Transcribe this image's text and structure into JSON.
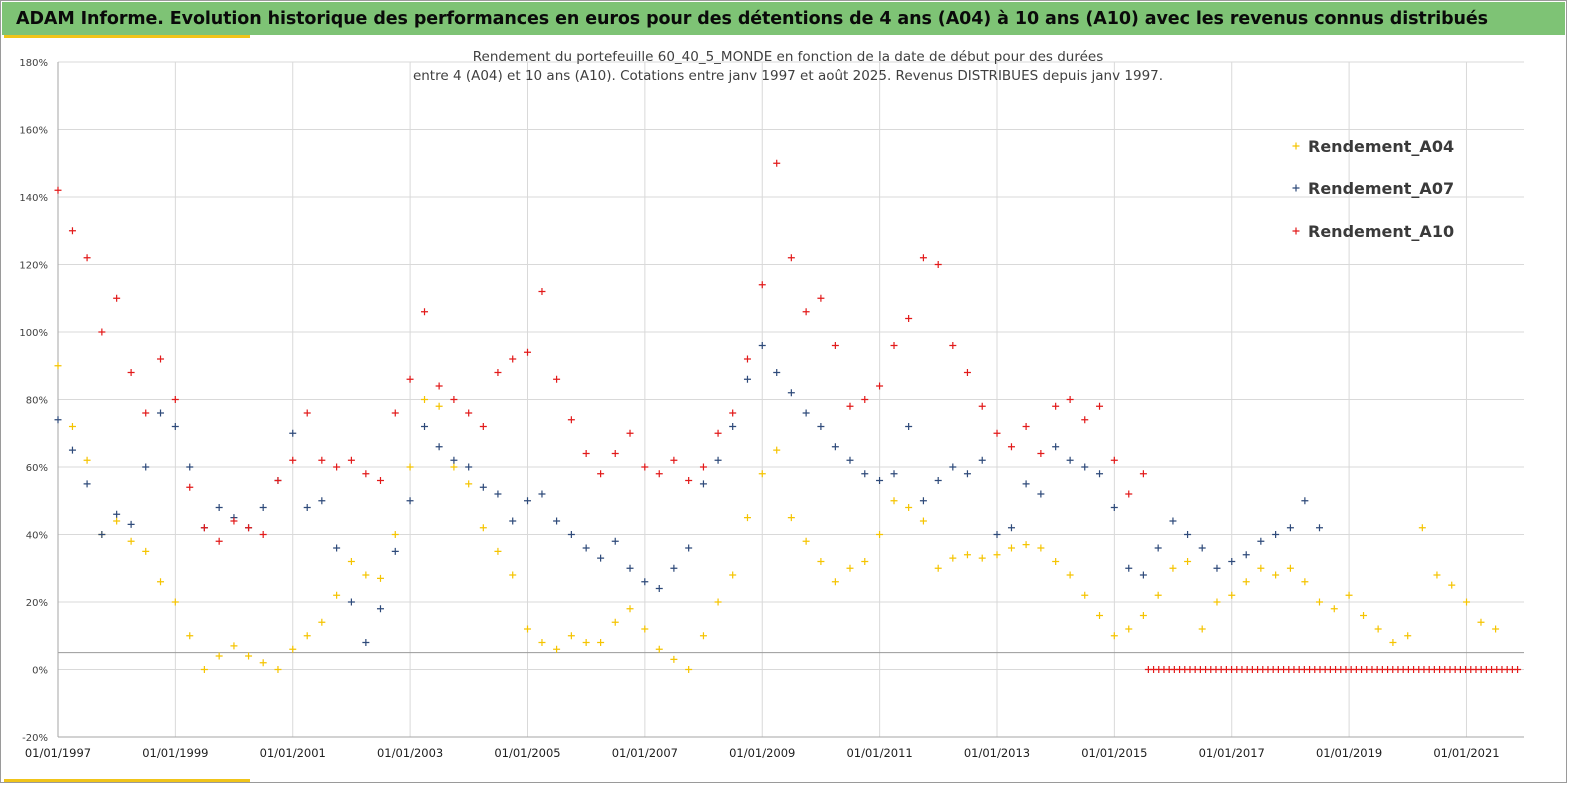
{
  "header": {
    "title": "ADAM Informe. Evolution historique des performances en euros pour des détentions de 4 ans (A04) à 10 ans (A10) avec les revenus connus distribués"
  },
  "colors": {
    "banner": "#7ec375",
    "accent": "#f0c419",
    "A04": "#f5c400",
    "A07": "#2e4a7a",
    "A10": "#e21a1a"
  },
  "chart_data": {
    "type": "scatter",
    "title": "Rendement du portefeuille 60_40_5_MONDE en fonction de la date de début pour des durées",
    "subtitle": "entre 4 (A04) et 10 ans (A10). Cotations entre janv 1997 et août 2025. Revenus DISTRIBUES depuis janv 1997.",
    "xlabel": "",
    "ylabel": "",
    "ylim": [
      -0.2,
      1.8
    ],
    "xlim": [
      "1997-01-01",
      "2021-12-31"
    ],
    "y_ticks": [
      -0.2,
      0,
      0.2,
      0.4,
      0.6,
      0.8,
      1.0,
      1.2,
      1.4,
      1.6,
      1.8
    ],
    "y_tick_labels": [
      "-20%",
      "0%",
      "20%",
      "40%",
      "60%",
      "80%",
      "100%",
      "120%",
      "140%",
      "160%",
      "180%"
    ],
    "x_tick_labels": [
      "01/01/1997",
      "01/01/1999",
      "01/01/2001",
      "01/01/2003",
      "01/01/2005",
      "01/01/2007",
      "01/01/2009",
      "01/01/2011",
      "01/01/2013",
      "01/01/2015",
      "01/01/2017",
      "01/01/2019",
      "01/01/2021"
    ],
    "reference_line_y": 0.05,
    "grid": true,
    "legend_position": "top-right",
    "marker": "plus",
    "series": [
      {
        "name": "Rendement_A04",
        "points": [
          [
            "1997-01",
            0.9
          ],
          [
            "1997-04",
            0.72
          ],
          [
            "1997-07",
            0.62
          ],
          [
            "1997-10",
            0.4
          ],
          [
            "1998-01",
            0.44
          ],
          [
            "1998-04",
            0.38
          ],
          [
            "1998-07",
            0.35
          ],
          [
            "1998-10",
            0.26
          ],
          [
            "1999-01",
            0.2
          ],
          [
            "1999-04",
            0.1
          ],
          [
            "1999-07",
            0.0
          ],
          [
            "1999-10",
            0.04
          ],
          [
            "2000-01",
            0.07
          ],
          [
            "2000-04",
            0.04
          ],
          [
            "2000-07",
            0.02
          ],
          [
            "2000-10",
            0.0
          ],
          [
            "2001-01",
            0.06
          ],
          [
            "2001-04",
            0.1
          ],
          [
            "2001-07",
            0.14
          ],
          [
            "2001-10",
            0.22
          ],
          [
            "2002-01",
            0.32
          ],
          [
            "2002-04",
            0.28
          ],
          [
            "2002-07",
            0.27
          ],
          [
            "2002-10",
            0.4
          ],
          [
            "2003-01",
            0.6
          ],
          [
            "2003-04",
            0.8
          ],
          [
            "2003-07",
            0.78
          ],
          [
            "2003-10",
            0.6
          ],
          [
            "2004-01",
            0.55
          ],
          [
            "2004-04",
            0.42
          ],
          [
            "2004-07",
            0.35
          ],
          [
            "2004-10",
            0.28
          ],
          [
            "2005-01",
            0.12
          ],
          [
            "2005-04",
            0.08
          ],
          [
            "2005-07",
            0.06
          ],
          [
            "2005-10",
            0.1
          ],
          [
            "2006-01",
            0.08
          ],
          [
            "2006-04",
            0.08
          ],
          [
            "2006-07",
            0.14
          ],
          [
            "2006-10",
            0.18
          ],
          [
            "2007-01",
            0.12
          ],
          [
            "2007-04",
            0.06
          ],
          [
            "2007-07",
            0.03
          ],
          [
            "2007-10",
            0.0
          ],
          [
            "2008-01",
            0.1
          ],
          [
            "2008-04",
            0.2
          ],
          [
            "2008-07",
            0.28
          ],
          [
            "2008-10",
            0.45
          ],
          [
            "2009-01",
            0.58
          ],
          [
            "2009-04",
            0.65
          ],
          [
            "2009-07",
            0.45
          ],
          [
            "2009-10",
            0.38
          ],
          [
            "2010-01",
            0.32
          ],
          [
            "2010-04",
            0.26
          ],
          [
            "2010-07",
            0.3
          ],
          [
            "2010-10",
            0.32
          ],
          [
            "2011-01",
            0.4
          ],
          [
            "2011-04",
            0.5
          ],
          [
            "2011-07",
            0.48
          ],
          [
            "2011-10",
            0.44
          ],
          [
            "2012-01",
            0.3
          ],
          [
            "2012-04",
            0.33
          ],
          [
            "2012-07",
            0.34
          ],
          [
            "2012-10",
            0.33
          ],
          [
            "2013-01",
            0.34
          ],
          [
            "2013-04",
            0.36
          ],
          [
            "2013-07",
            0.37
          ],
          [
            "2013-10",
            0.36
          ],
          [
            "2014-01",
            0.32
          ],
          [
            "2014-04",
            0.28
          ],
          [
            "2014-07",
            0.22
          ],
          [
            "2014-10",
            0.16
          ],
          [
            "2015-01",
            0.1
          ],
          [
            "2015-04",
            0.12
          ],
          [
            "2015-07",
            0.16
          ],
          [
            "2015-10",
            0.22
          ],
          [
            "2016-01",
            0.3
          ],
          [
            "2016-04",
            0.32
          ],
          [
            "2016-07",
            0.12
          ],
          [
            "2016-10",
            0.2
          ],
          [
            "2017-01",
            0.22
          ],
          [
            "2017-04",
            0.26
          ],
          [
            "2017-07",
            0.3
          ],
          [
            "2017-10",
            0.28
          ],
          [
            "2018-01",
            0.3
          ],
          [
            "2018-04",
            0.26
          ],
          [
            "2018-07",
            0.2
          ],
          [
            "2018-10",
            0.18
          ],
          [
            "2019-01",
            0.22
          ],
          [
            "2019-04",
            0.16
          ],
          [
            "2019-07",
            0.12
          ],
          [
            "2019-10",
            0.08
          ],
          [
            "2020-01",
            0.1
          ],
          [
            "2020-04",
            0.42
          ],
          [
            "2020-07",
            0.28
          ],
          [
            "2020-10",
            0.25
          ],
          [
            "2021-01",
            0.2
          ],
          [
            "2021-04",
            0.14
          ],
          [
            "2021-07",
            0.12
          ]
        ]
      },
      {
        "name": "Rendement_A07",
        "points": [
          [
            "1997-01",
            0.74
          ],
          [
            "1997-04",
            0.65
          ],
          [
            "1997-07",
            0.55
          ],
          [
            "1997-10",
            0.4
          ],
          [
            "1998-01",
            0.46
          ],
          [
            "1998-04",
            0.43
          ],
          [
            "1998-07",
            0.6
          ],
          [
            "1998-10",
            0.76
          ],
          [
            "1999-01",
            0.72
          ],
          [
            "1999-04",
            0.6
          ],
          [
            "1999-07",
            0.42
          ],
          [
            "1999-10",
            0.48
          ],
          [
            "2000-01",
            0.45
          ],
          [
            "2000-04",
            0.42
          ],
          [
            "2000-07",
            0.48
          ],
          [
            "2000-10",
            0.56
          ],
          [
            "2001-01",
            0.7
          ],
          [
            "2001-04",
            0.48
          ],
          [
            "2001-07",
            0.5
          ],
          [
            "2001-10",
            0.36
          ],
          [
            "2002-01",
            0.2
          ],
          [
            "2002-04",
            0.08
          ],
          [
            "2002-07",
            0.18
          ],
          [
            "2002-10",
            0.35
          ],
          [
            "2003-01",
            0.5
          ],
          [
            "2003-04",
            0.72
          ],
          [
            "2003-07",
            0.66
          ],
          [
            "2003-10",
            0.62
          ],
          [
            "2004-01",
            0.6
          ],
          [
            "2004-04",
            0.54
          ],
          [
            "2004-07",
            0.52
          ],
          [
            "2004-10",
            0.44
          ],
          [
            "2005-01",
            0.5
          ],
          [
            "2005-04",
            0.52
          ],
          [
            "2005-07",
            0.44
          ],
          [
            "2005-10",
            0.4
          ],
          [
            "2006-01",
            0.36
          ],
          [
            "2006-04",
            0.33
          ],
          [
            "2006-07",
            0.38
          ],
          [
            "2006-10",
            0.3
          ],
          [
            "2007-01",
            0.26
          ],
          [
            "2007-04",
            0.24
          ],
          [
            "2007-07",
            0.3
          ],
          [
            "2007-10",
            0.36
          ],
          [
            "2008-01",
            0.55
          ],
          [
            "2008-04",
            0.62
          ],
          [
            "2008-07",
            0.72
          ],
          [
            "2008-10",
            0.86
          ],
          [
            "2009-01",
            0.96
          ],
          [
            "2009-04",
            0.88
          ],
          [
            "2009-07",
            0.82
          ],
          [
            "2009-10",
            0.76
          ],
          [
            "2010-01",
            0.72
          ],
          [
            "2010-04",
            0.66
          ],
          [
            "2010-07",
            0.62
          ],
          [
            "2010-10",
            0.58
          ],
          [
            "2011-01",
            0.56
          ],
          [
            "2011-04",
            0.58
          ],
          [
            "2011-07",
            0.72
          ],
          [
            "2011-10",
            0.5
          ],
          [
            "2012-01",
            0.56
          ],
          [
            "2012-04",
            0.6
          ],
          [
            "2012-07",
            0.58
          ],
          [
            "2012-10",
            0.62
          ],
          [
            "2013-01",
            0.4
          ],
          [
            "2013-04",
            0.42
          ],
          [
            "2013-07",
            0.55
          ],
          [
            "2013-10",
            0.52
          ],
          [
            "2014-01",
            0.66
          ],
          [
            "2014-04",
            0.62
          ],
          [
            "2014-07",
            0.6
          ],
          [
            "2014-10",
            0.58
          ],
          [
            "2015-01",
            0.48
          ],
          [
            "2015-04",
            0.3
          ],
          [
            "2015-07",
            0.28
          ],
          [
            "2015-10",
            0.36
          ],
          [
            "2016-01",
            0.44
          ],
          [
            "2016-04",
            0.4
          ],
          [
            "2016-07",
            0.36
          ],
          [
            "2016-10",
            0.3
          ],
          [
            "2017-01",
            0.32
          ],
          [
            "2017-04",
            0.34
          ],
          [
            "2017-07",
            0.38
          ],
          [
            "2017-10",
            0.4
          ],
          [
            "2018-01",
            0.42
          ],
          [
            "2018-04",
            0.5
          ],
          [
            "2018-07",
            0.42
          ]
        ]
      },
      {
        "name": "Rendement_A10",
        "points": [
          [
            "1997-01",
            1.42
          ],
          [
            "1997-04",
            1.3
          ],
          [
            "1997-07",
            1.22
          ],
          [
            "1997-10",
            1.0
          ],
          [
            "1998-01",
            1.1
          ],
          [
            "1998-04",
            0.88
          ],
          [
            "1998-07",
            0.76
          ],
          [
            "1998-10",
            0.92
          ],
          [
            "1999-01",
            0.8
          ],
          [
            "1999-04",
            0.54
          ],
          [
            "1999-07",
            0.42
          ],
          [
            "1999-10",
            0.38
          ],
          [
            "2000-01",
            0.44
          ],
          [
            "2000-04",
            0.42
          ],
          [
            "2000-07",
            0.4
          ],
          [
            "2000-10",
            0.56
          ],
          [
            "2001-01",
            0.62
          ],
          [
            "2001-04",
            0.76
          ],
          [
            "2001-07",
            0.62
          ],
          [
            "2001-10",
            0.6
          ],
          [
            "2002-01",
            0.62
          ],
          [
            "2002-04",
            0.58
          ],
          [
            "2002-07",
            0.56
          ],
          [
            "2002-10",
            0.76
          ],
          [
            "2003-01",
            0.86
          ],
          [
            "2003-04",
            1.06
          ],
          [
            "2003-07",
            0.84
          ],
          [
            "2003-10",
            0.8
          ],
          [
            "2004-01",
            0.76
          ],
          [
            "2004-04",
            0.72
          ],
          [
            "2004-07",
            0.88
          ],
          [
            "2004-10",
            0.92
          ],
          [
            "2005-01",
            0.94
          ],
          [
            "2005-04",
            1.12
          ],
          [
            "2005-07",
            0.86
          ],
          [
            "2005-10",
            0.74
          ],
          [
            "2006-01",
            0.64
          ],
          [
            "2006-04",
            0.58
          ],
          [
            "2006-07",
            0.64
          ],
          [
            "2006-10",
            0.7
          ],
          [
            "2007-01",
            0.6
          ],
          [
            "2007-04",
            0.58
          ],
          [
            "2007-07",
            0.62
          ],
          [
            "2007-10",
            0.56
          ],
          [
            "2008-01",
            0.6
          ],
          [
            "2008-04",
            0.7
          ],
          [
            "2008-07",
            0.76
          ],
          [
            "2008-10",
            0.92
          ],
          [
            "2009-01",
            1.14
          ],
          [
            "2009-04",
            1.5
          ],
          [
            "2009-07",
            1.22
          ],
          [
            "2009-10",
            1.06
          ],
          [
            "2010-01",
            1.1
          ],
          [
            "2010-04",
            0.96
          ],
          [
            "2010-07",
            0.78
          ],
          [
            "2010-10",
            0.8
          ],
          [
            "2011-01",
            0.84
          ],
          [
            "2011-04",
            0.96
          ],
          [
            "2011-07",
            1.04
          ],
          [
            "2011-10",
            1.22
          ],
          [
            "2012-01",
            1.2
          ],
          [
            "2012-04",
            0.96
          ],
          [
            "2012-07",
            0.88
          ],
          [
            "2012-10",
            0.78
          ],
          [
            "2013-01",
            0.7
          ],
          [
            "2013-04",
            0.66
          ],
          [
            "2013-07",
            0.72
          ],
          [
            "2013-10",
            0.64
          ],
          [
            "2014-01",
            0.78
          ],
          [
            "2014-04",
            0.8
          ],
          [
            "2014-07",
            0.74
          ],
          [
            "2014-10",
            0.78
          ],
          [
            "2015-01",
            0.62
          ],
          [
            "2015-04",
            0.52
          ],
          [
            "2015-07",
            0.58
          ]
        ]
      }
    ],
    "zero_segment": {
      "series": "Rendement_A10",
      "from": "2015-08",
      "to": "2021-12",
      "y": 0.0
    }
  }
}
